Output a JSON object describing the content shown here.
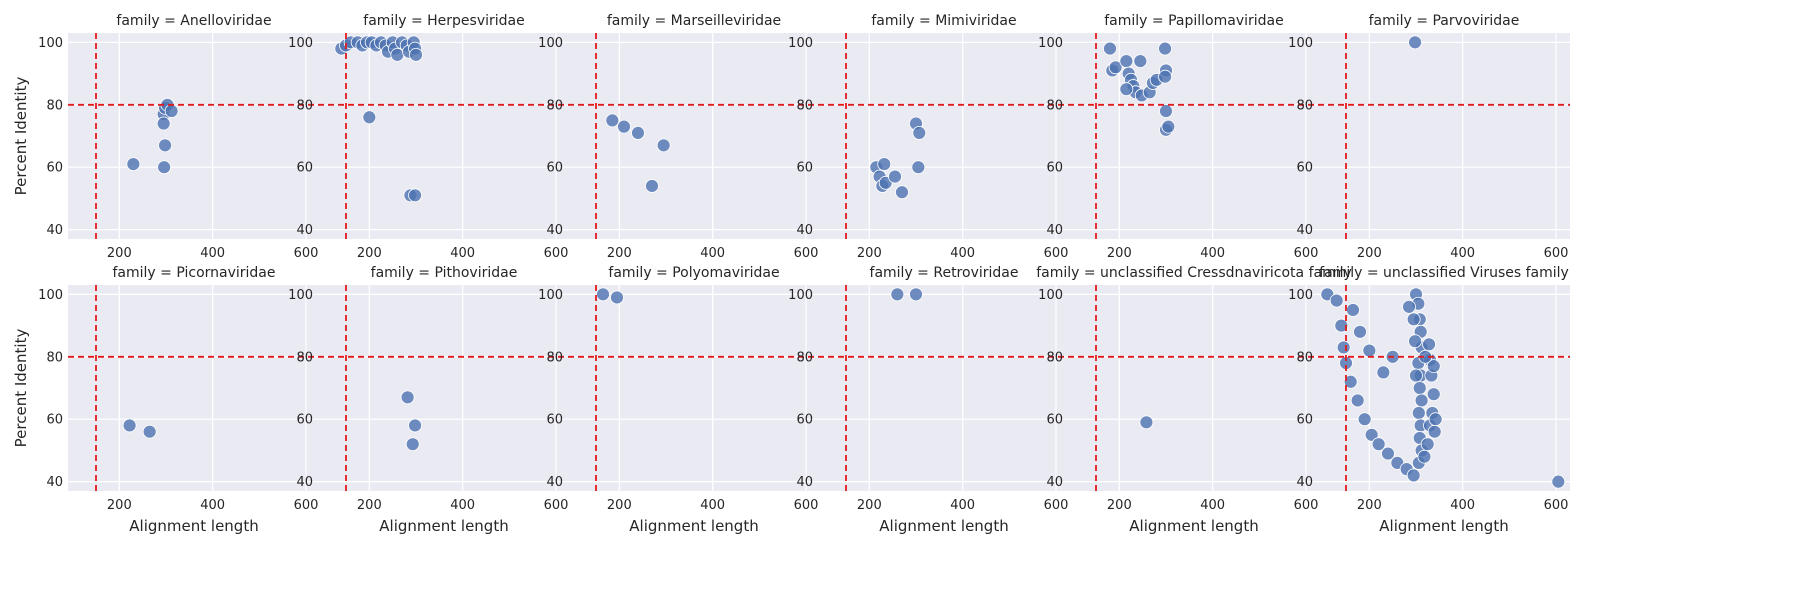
{
  "chart_data": {
    "type": "scatter",
    "facet_prefix": "family = ",
    "xlabel": "Alignment length",
    "ylabel": "Percent Identity",
    "xlim": [
      90,
      630
    ],
    "ylim": [
      37,
      103
    ],
    "xticks": [
      200,
      400,
      600
    ],
    "yticks": [
      40,
      60,
      80,
      100
    ],
    "reference_lines": {
      "x": 150,
      "y": 80,
      "color": "#e31a1c",
      "style": "dashed"
    },
    "point_color": "#4c72b0",
    "grid": true,
    "panels": [
      {
        "family": "Anelloviridae",
        "points": [
          [
            230,
            61
          ],
          [
            295,
            77
          ],
          [
            298,
            79
          ],
          [
            303,
            80
          ],
          [
            312,
            78
          ],
          [
            295,
            74
          ],
          [
            298,
            67
          ],
          [
            296,
            60
          ]
        ]
      },
      {
        "family": "Herpesviridae",
        "points": [
          [
            140,
            98
          ],
          [
            150,
            99
          ],
          [
            160,
            100
          ],
          [
            175,
            100
          ],
          [
            185,
            99
          ],
          [
            195,
            100
          ],
          [
            205,
            100
          ],
          [
            215,
            99
          ],
          [
            225,
            100
          ],
          [
            235,
            99
          ],
          [
            240,
            97
          ],
          [
            250,
            100
          ],
          [
            255,
            98
          ],
          [
            260,
            96
          ],
          [
            270,
            100
          ],
          [
            280,
            99
          ],
          [
            285,
            97
          ],
          [
            295,
            100
          ],
          [
            298,
            98
          ],
          [
            300,
            96
          ],
          [
            200,
            76
          ],
          [
            288,
            51
          ],
          [
            298,
            51
          ]
        ]
      },
      {
        "family": "Marseilleviridae",
        "points": [
          [
            185,
            75
          ],
          [
            210,
            73
          ],
          [
            240,
            71
          ],
          [
            295,
            67
          ],
          [
            270,
            54
          ]
        ]
      },
      {
        "family": "Mimiviridae",
        "points": [
          [
            215,
            60
          ],
          [
            222,
            57
          ],
          [
            228,
            54
          ],
          [
            235,
            55
          ],
          [
            232,
            61
          ],
          [
            255,
            57
          ],
          [
            270,
            52
          ],
          [
            300,
            74
          ],
          [
            307,
            71
          ],
          [
            305,
            60
          ]
        ]
      },
      {
        "family": "Papillomaviridae",
        "points": [
          [
            180,
            98
          ],
          [
            185,
            91
          ],
          [
            192,
            92
          ],
          [
            215,
            94
          ],
          [
            220,
            90
          ],
          [
            225,
            88
          ],
          [
            230,
            86
          ],
          [
            235,
            84
          ],
          [
            245,
            94
          ],
          [
            248,
            83
          ],
          [
            265,
            84
          ],
          [
            272,
            87
          ],
          [
            280,
            88
          ],
          [
            298,
            98
          ],
          [
            300,
            91
          ],
          [
            298,
            89
          ],
          [
            300,
            78
          ],
          [
            300,
            72
          ],
          [
            305,
            73
          ],
          [
            215,
            85
          ]
        ]
      },
      {
        "family": "Parvoviridae",
        "points": [
          [
            298,
            100
          ]
        ]
      },
      {
        "family": "Picornaviridae",
        "points": [
          [
            222,
            58
          ],
          [
            265,
            56
          ]
        ]
      },
      {
        "family": "Pithoviridae",
        "points": [
          [
            282,
            67
          ],
          [
            298,
            58
          ],
          [
            293,
            52
          ]
        ]
      },
      {
        "family": "Polyomaviridae",
        "points": [
          [
            165,
            100
          ],
          [
            195,
            99
          ]
        ]
      },
      {
        "family": "Retroviridae",
        "points": [
          [
            260,
            100
          ],
          [
            300,
            100
          ]
        ]
      },
      {
        "family": "unclassified Cressdnaviricota family",
        "points": [
          [
            258,
            59
          ]
        ]
      },
      {
        "family": "unclassified Viruses family",
        "points": [
          [
            110,
            100
          ],
          [
            130,
            98
          ],
          [
            140,
            90
          ],
          [
            145,
            83
          ],
          [
            150,
            78
          ],
          [
            160,
            72
          ],
          [
            175,
            66
          ],
          [
            190,
            60
          ],
          [
            205,
            55
          ],
          [
            220,
            52
          ],
          [
            240,
            49
          ],
          [
            260,
            46
          ],
          [
            280,
            44
          ],
          [
            295,
            42
          ],
          [
            300,
            100
          ],
          [
            305,
            97
          ],
          [
            308,
            92
          ],
          [
            310,
            88
          ],
          [
            312,
            83
          ],
          [
            305,
            78
          ],
          [
            310,
            74
          ],
          [
            308,
            70
          ],
          [
            312,
            66
          ],
          [
            306,
            62
          ],
          [
            310,
            58
          ],
          [
            308,
            54
          ],
          [
            312,
            50
          ],
          [
            306,
            46
          ],
          [
            318,
            48
          ],
          [
            325,
            52
          ],
          [
            330,
            58
          ],
          [
            335,
            62
          ],
          [
            338,
            68
          ],
          [
            333,
            74
          ],
          [
            330,
            79
          ],
          [
            328,
            84
          ],
          [
            340,
            56
          ],
          [
            342,
            60
          ],
          [
            338,
            77
          ],
          [
            320,
            80
          ],
          [
            605,
            40
          ],
          [
            295,
            92
          ],
          [
            298,
            85
          ],
          [
            300,
            74
          ],
          [
            285,
            96
          ],
          [
            250,
            80
          ],
          [
            230,
            75
          ],
          [
            200,
            82
          ],
          [
            180,
            88
          ],
          [
            165,
            95
          ]
        ]
      }
    ]
  }
}
